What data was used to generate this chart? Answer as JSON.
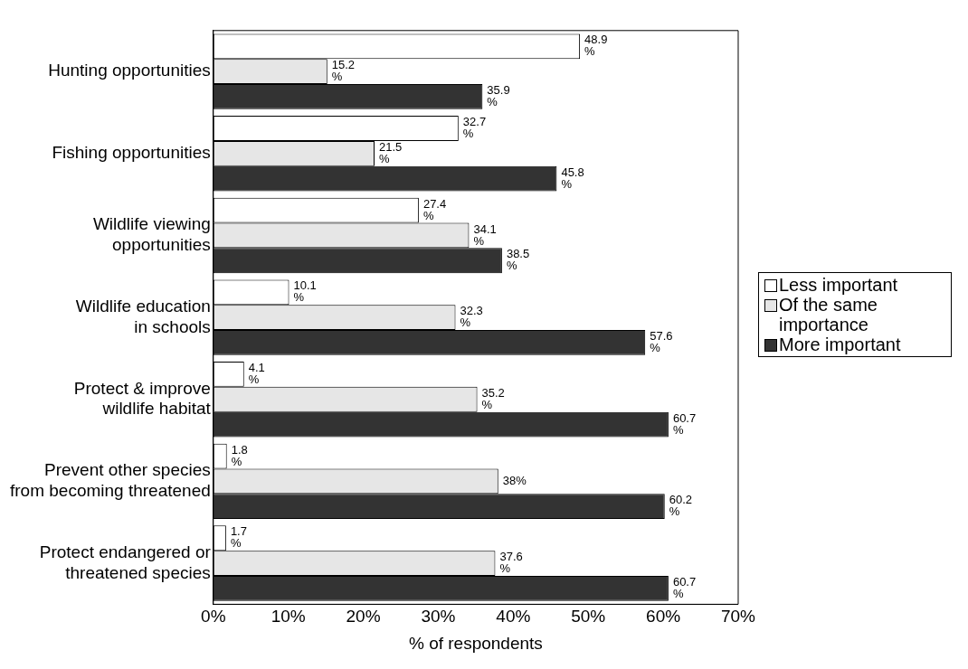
{
  "chart_data": {
    "type": "bar",
    "orientation": "horizontal",
    "xlabel": "% of respondents",
    "categories": [
      "Hunting opportunities",
      "Fishing opportunities",
      "Wildlife viewing\nopportunities",
      "Wildlife education\nin schools",
      "Protect & improve\nwildlife habitat",
      "Prevent other species\nfrom becoming threatened",
      "Protect endangered or\nthreatened species"
    ],
    "series": [
      {
        "name": "Less important",
        "color": "#ffffff",
        "values": [
          48.9,
          32.7,
          27.4,
          10.1,
          4.1,
          1.8,
          1.7
        ],
        "value_labels": [
          "48.9 %",
          "32.7 %",
          "27.4 %",
          "10.1 %",
          "4.1 %",
          "1.8 %",
          "1.7 %"
        ]
      },
      {
        "name": "Of the same importance",
        "color": "#e6e6e6",
        "values": [
          15.2,
          21.5,
          34.1,
          32.3,
          35.2,
          38,
          37.6
        ],
        "value_labels": [
          "15.2 %",
          "21.5 %",
          "34.1 %",
          "32.3 %",
          "35.2 %",
          "38%",
          "37.6 %"
        ]
      },
      {
        "name": "More important",
        "color": "#333333",
        "values": [
          35.9,
          45.8,
          38.5,
          57.6,
          60.7,
          60.2,
          60.7
        ],
        "value_labels": [
          "35.9 %",
          "45.8 %",
          "38.5 %",
          "57.6 %",
          "60.7 %",
          "60.2 %",
          "60.7 %"
        ]
      }
    ],
    "xlim": [
      0,
      70
    ],
    "xticks": [
      {
        "value": 0,
        "label": "0%"
      },
      {
        "value": 10,
        "label": "10%"
      },
      {
        "value": 20,
        "label": "20%"
      },
      {
        "value": 30,
        "label": "30%"
      },
      {
        "value": 40,
        "label": "40%"
      },
      {
        "value": 50,
        "label": "50%"
      },
      {
        "value": 60,
        "label": "60%"
      },
      {
        "value": 70,
        "label": "70%"
      }
    ],
    "grid": false,
    "legend": "right"
  }
}
